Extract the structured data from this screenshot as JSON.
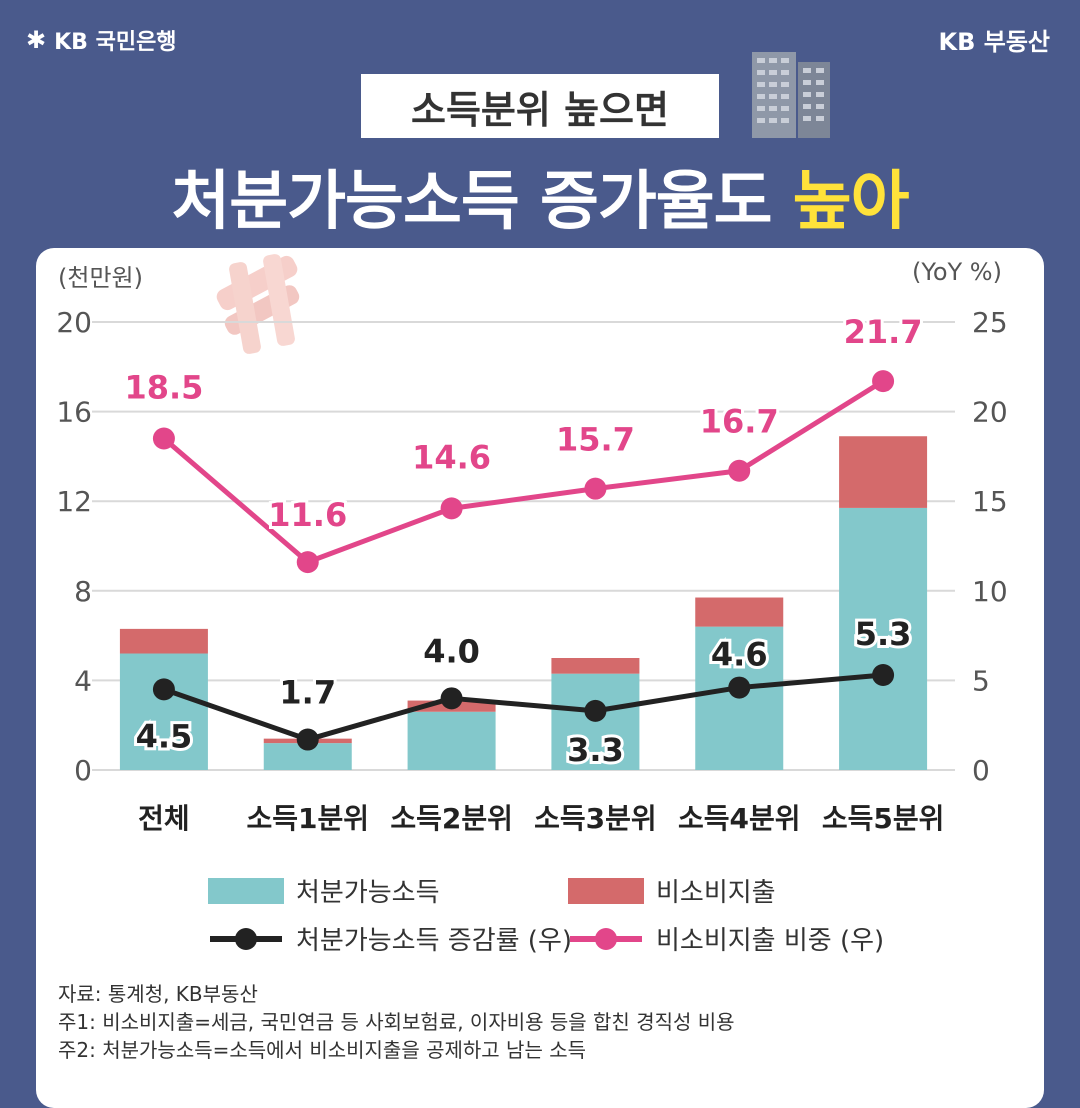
{
  "header": {
    "brand_left": "KB 국민은행",
    "brand_right": "KB 부동산",
    "subtitle": "소득분위 높으면",
    "title_main": "처분가능소득 증가율도",
    "title_highlight": "높아"
  },
  "colors": {
    "background": "#4a5a8c",
    "disposable": "#83c8cb",
    "nonconsumption": "#d46a6b",
    "growth_line": "#222222",
    "share_line": "#e2468a",
    "highlight": "#ffe23a"
  },
  "chart_data": {
    "type": "bar",
    "categories": [
      "전체",
      "소득1분위",
      "소득2분위",
      "소득3분위",
      "소득4분위",
      "소득5분위"
    ],
    "left_axis": {
      "label": "(천만원)",
      "range": [
        0,
        20
      ],
      "ticks": [
        "0",
        "4",
        "8",
        "12",
        "16",
        "20"
      ]
    },
    "right_axis": {
      "label": "(YoY %)",
      "range": [
        0,
        25
      ],
      "ticks": [
        "0",
        "5",
        "10",
        "15",
        "20",
        "25"
      ]
    },
    "series": [
      {
        "name": "처분가능소득",
        "type": "bar-stack",
        "axis": "left",
        "values": [
          5.2,
          1.2,
          2.6,
          4.3,
          6.4,
          11.7
        ]
      },
      {
        "name": "비소비지출",
        "type": "bar-stack",
        "axis": "left",
        "values": [
          1.1,
          0.2,
          0.5,
          0.7,
          1.3,
          3.2
        ]
      },
      {
        "name": "처분가능소득 증감률 (우)",
        "type": "line",
        "axis": "right",
        "values": [
          4.5,
          1.7,
          4.0,
          3.3,
          4.6,
          5.3
        ],
        "labels": [
          "4.5",
          "1.7",
          "4.0",
          "3.3",
          "4.6",
          "5.3"
        ]
      },
      {
        "name": "비소비지출 비중 (우)",
        "type": "line",
        "axis": "right",
        "values": [
          18.5,
          11.6,
          14.6,
          15.7,
          16.7,
          21.7
        ],
        "labels": [
          "18.5",
          "11.6",
          "14.6",
          "15.7",
          "16.7",
          "21.7"
        ]
      }
    ]
  },
  "legend": {
    "disposable": "처분가능소득",
    "nonconsumption": "비소비지출",
    "growth": "처분가능소득 증감률 (우)",
    "share": "비소비지출 비중 (우)"
  },
  "notes": {
    "source": "자료: 통계청, KB부동산",
    "note1": "주1: 비소비지출=세금, 국민연금 등 사회보험료, 이자비용 등을 합친 경직성 비용",
    "note2": "주2: 처분가능소득=소득에서 비소비지출을 공제하고 남는 소득"
  }
}
